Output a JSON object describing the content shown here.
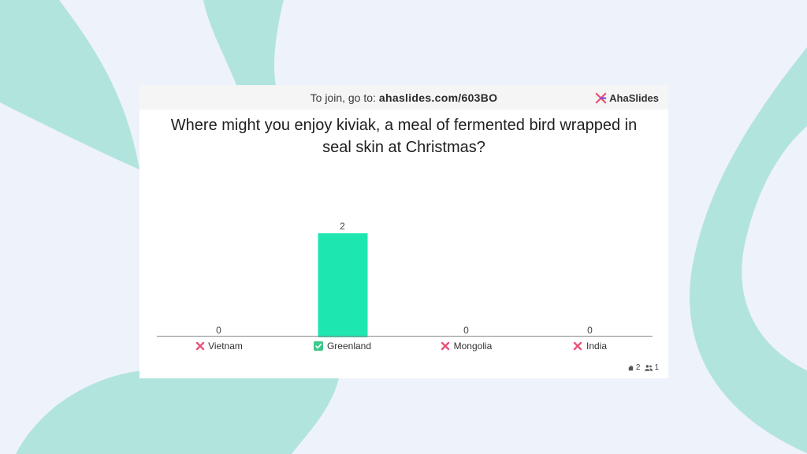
{
  "join": {
    "prefix": "To join, go to:",
    "url": "ahaslides.com/603BO"
  },
  "brand": {
    "name": "AhaSlides"
  },
  "question": {
    "line1": "Where might you enjoy kiviak, a meal of fermented bird wrapped in",
    "line2": "seal skin at Christmas?"
  },
  "chart_data": {
    "type": "bar",
    "categories": [
      "Vietnam",
      "Greenland",
      "Mongolia",
      "India"
    ],
    "values": [
      0,
      2,
      0,
      0
    ],
    "correct": [
      false,
      true,
      false,
      false
    ],
    "bar_color": "#1ee6b0",
    "ylim": [
      0,
      2
    ]
  },
  "footer": {
    "responses": "2",
    "participants": "1"
  },
  "colors": {
    "accent": "#1ee6b0",
    "wrong": "#e8537a",
    "correct": "#3ec98a",
    "background": "#eef2fb",
    "shape": "#b1e4dd"
  }
}
